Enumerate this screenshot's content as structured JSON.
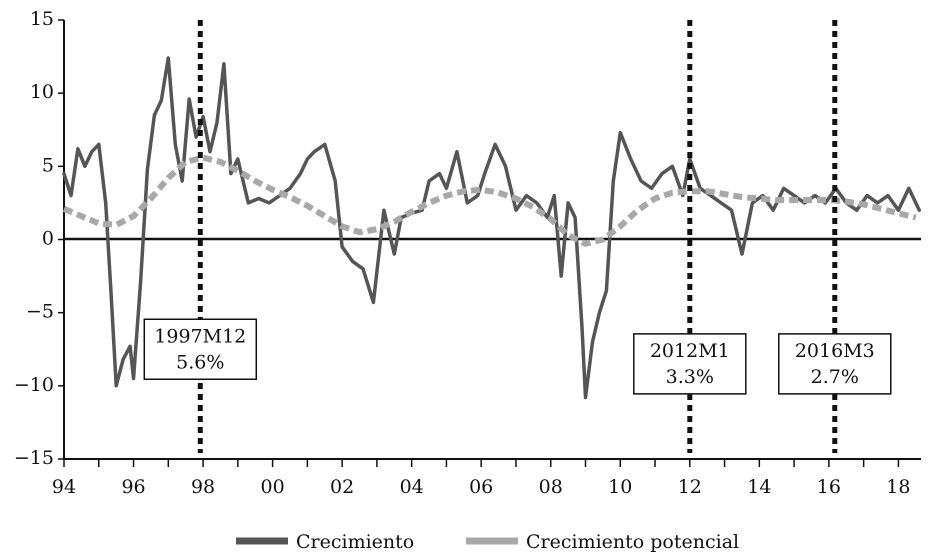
{
  "chart_data": {
    "type": "line",
    "title": "",
    "xlabel": "",
    "ylabel": "",
    "xlim": [
      1994.0,
      2018.65
    ],
    "ylim": [
      -15,
      15
    ],
    "yticks": [
      15,
      10,
      5,
      0,
      -5,
      -10,
      -15
    ],
    "yticks_labels": [
      "15",
      "10",
      "5",
      "0",
      "−5",
      "−10",
      "−15"
    ],
    "xticks": [
      {
        "value": 1994,
        "label": "94"
      },
      {
        "value": 1996,
        "label": "96"
      },
      {
        "value": 1998,
        "label": "98"
      },
      {
        "value": 2000,
        "label": "00"
      },
      {
        "value": 2002,
        "label": "02"
      },
      {
        "value": 2004,
        "label": "04"
      },
      {
        "value": 2006,
        "label": "06"
      },
      {
        "value": 2008,
        "label": "08"
      },
      {
        "value": 2010,
        "label": "10"
      },
      {
        "value": 2012,
        "label": "12"
      },
      {
        "value": 2014,
        "label": "14"
      },
      {
        "value": 2016,
        "label": "16"
      },
      {
        "value": 2018,
        "label": "18"
      }
    ],
    "grid": false,
    "legend_position": "bottom",
    "series": [
      {
        "name": "Crecimiento",
        "color": "#555555",
        "style": "solid",
        "x": [
          1994.0,
          1994.2,
          1994.4,
          1994.6,
          1994.8,
          1995.0,
          1995.2,
          1995.35,
          1995.5,
          1995.7,
          1995.9,
          1996.0,
          1996.2,
          1996.4,
          1996.6,
          1996.8,
          1997.0,
          1997.2,
          1997.4,
          1997.6,
          1997.8,
          1998.0,
          1998.2,
          1998.4,
          1998.6,
          1998.8,
          1999.0,
          1999.3,
          1999.6,
          1999.9,
          2000.2,
          2000.5,
          2000.8,
          2001.0,
          2001.2,
          2001.5,
          2001.8,
          2002.0,
          2002.3,
          2002.6,
          2002.9,
          2003.2,
          2003.5,
          2003.7,
          2004.0,
          2004.3,
          2004.5,
          2004.8,
          2005.0,
          2005.3,
          2005.6,
          2005.9,
          2006.1,
          2006.4,
          2006.7,
          2007.0,
          2007.3,
          2007.6,
          2007.9,
          2008.1,
          2008.3,
          2008.5,
          2008.7,
          2008.9,
          2009.0,
          2009.2,
          2009.4,
          2009.6,
          2009.8,
          2010.0,
          2010.3,
          2010.6,
          2010.9,
          2011.2,
          2011.5,
          2011.8,
          2012.0,
          2012.3,
          2012.6,
          2012.9,
          2013.2,
          2013.5,
          2013.8,
          2014.1,
          2014.4,
          2014.7,
          2015.0,
          2015.3,
          2015.6,
          2015.9,
          2016.2,
          2016.5,
          2016.8,
          2017.1,
          2017.4,
          2017.7,
          2018.0,
          2018.3,
          2018.6
        ],
        "y": [
          4.5,
          3.0,
          6.2,
          5.0,
          6.0,
          6.5,
          2.5,
          -3.5,
          -10.0,
          -8.2,
          -7.3,
          -9.5,
          -3.0,
          4.8,
          8.5,
          9.5,
          12.4,
          6.5,
          4.0,
          9.6,
          7.0,
          8.4,
          6.0,
          8.0,
          12.0,
          4.5,
          5.5,
          2.5,
          2.8,
          2.5,
          3.0,
          3.5,
          4.5,
          5.5,
          6.0,
          6.5,
          4.0,
          -0.5,
          -1.5,
          -2.0,
          -4.3,
          2.0,
          -1.0,
          1.5,
          1.8,
          2.0,
          4.0,
          4.5,
          3.5,
          6.0,
          2.5,
          3.0,
          4.5,
          6.5,
          5.0,
          2.0,
          3.0,
          2.5,
          1.5,
          3.0,
          -2.5,
          2.5,
          1.5,
          -6.0,
          -10.8,
          -7.0,
          -5.0,
          -3.5,
          4.0,
          7.3,
          5.5,
          4.0,
          3.5,
          4.5,
          5.0,
          3.0,
          5.5,
          3.5,
          3.0,
          2.5,
          2.0,
          -1.0,
          2.5,
          3.0,
          2.0,
          3.5,
          3.0,
          2.5,
          3.0,
          2.5,
          3.5,
          2.5,
          2.0,
          3.0,
          2.5,
          3.0,
          2.0,
          3.5,
          2.0
        ]
      },
      {
        "name": "Crecimiento potencial",
        "color": "#a8a8a8",
        "style": "dashed",
        "x": [
          1994.0,
          1994.5,
          1995.0,
          1995.5,
          1996.0,
          1996.5,
          1997.0,
          1997.5,
          1998.0,
          1998.5,
          1999.0,
          1999.5,
          2000.0,
          2000.5,
          2001.0,
          2001.5,
          2002.0,
          2002.5,
          2003.0,
          2003.5,
          2004.0,
          2004.5,
          2005.0,
          2005.5,
          2006.0,
          2006.5,
          2007.0,
          2007.5,
          2008.0,
          2008.5,
          2009.0,
          2009.5,
          2010.0,
          2010.5,
          2011.0,
          2011.5,
          2012.0,
          2012.5,
          2013.0,
          2013.5,
          2014.0,
          2014.5,
          2015.0,
          2015.5,
          2016.0,
          2016.5,
          2017.0,
          2017.5,
          2018.0,
          2018.5
        ],
        "y": [
          2.1,
          1.6,
          1.1,
          1.0,
          1.6,
          2.8,
          4.2,
          5.3,
          5.6,
          5.3,
          4.7,
          4.0,
          3.4,
          2.9,
          2.3,
          1.6,
          0.9,
          0.5,
          0.7,
          1.2,
          1.9,
          2.5,
          3.0,
          3.3,
          3.4,
          3.2,
          2.8,
          2.2,
          1.4,
          0.3,
          -0.3,
          0.0,
          0.9,
          2.0,
          2.8,
          3.2,
          3.3,
          3.3,
          3.1,
          2.9,
          2.8,
          2.7,
          2.7,
          2.7,
          2.7,
          2.6,
          2.4,
          2.1,
          1.8,
          1.5
        ]
      }
    ],
    "vertical_lines": [
      {
        "x": 1997.92,
        "label_line1": "1997M12",
        "label_line2": "5.6%",
        "box_y": -7.5
      },
      {
        "x": 2012.0,
        "label_line1": "2012M1",
        "label_line2": "3.3%",
        "box_y": -8.5
      },
      {
        "x": 2016.17,
        "label_line1": "2016M3",
        "label_line2": "2.7%",
        "box_y": -8.5
      }
    ]
  }
}
